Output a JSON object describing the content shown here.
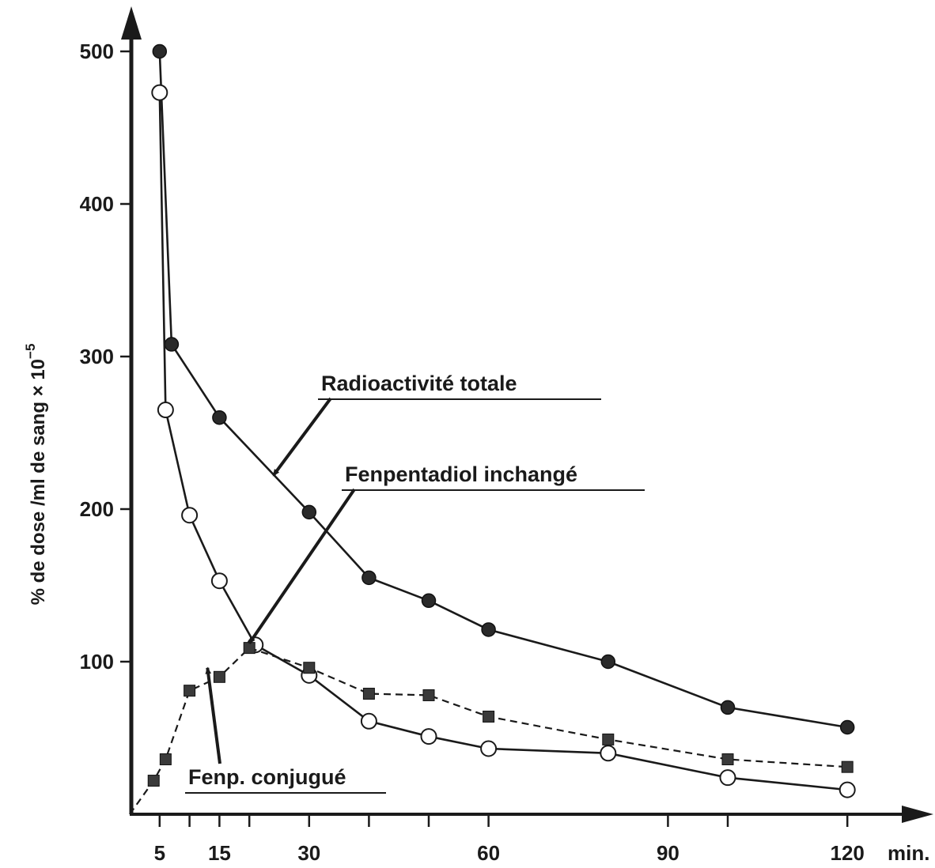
{
  "chart_data": {
    "type": "line",
    "xlabel": "min.",
    "ylabel": "% de dose /ml de sang × 10",
    "ylabel_exponent": "−5",
    "xlim": [
      0,
      127
    ],
    "ylim": [
      0,
      520
    ],
    "x_ticks": [
      5,
      10,
      15,
      20,
      30,
      40,
      50,
      60,
      90,
      100,
      120
    ],
    "x_tick_labels": [
      {
        "x": 5,
        "label": "5"
      },
      {
        "x": 15,
        "label": "15"
      },
      {
        "x": 30,
        "label": "30"
      },
      {
        "x": 60,
        "label": "60"
      },
      {
        "x": 90,
        "label": "90"
      },
      {
        "x": 120,
        "label": "120"
      }
    ],
    "y_ticks": [
      100,
      200,
      300,
      400,
      500
    ],
    "y_tick_labels": [
      "100",
      "200",
      "300",
      "400",
      "500"
    ],
    "grid": false,
    "series": [
      {
        "name": "Radioactivité totale",
        "marker": "filled-circle",
        "line_style": "solid",
        "color": "#1a1a1a",
        "x": [
          5,
          7,
          15,
          30,
          40,
          50,
          60,
          80,
          100,
          120
        ],
        "y": [
          500,
          308,
          260,
          198,
          155,
          140,
          121,
          100,
          70,
          57
        ]
      },
      {
        "name": "Fenpentadiol inchangé",
        "marker": "open-circle",
        "line_style": "solid",
        "color": "#1a1a1a",
        "x": [
          5,
          6,
          10,
          15,
          21,
          30,
          40,
          50,
          60,
          80,
          100,
          120
        ],
        "y": [
          473,
          265,
          196,
          153,
          111,
          91,
          61,
          51,
          43,
          40,
          24,
          16
        ]
      },
      {
        "name": "Fenp. conjugué",
        "marker": "filled-square",
        "line_style": "dashed",
        "color": "#1a1a1a",
        "x": [
          0,
          4,
          6,
          10,
          15,
          20,
          30,
          40,
          50,
          60,
          80,
          100,
          120
        ],
        "y": [
          0,
          22,
          36,
          81,
          90,
          109,
          96,
          79,
          78,
          64,
          49,
          36,
          31
        ]
      }
    ],
    "annotations": [
      {
        "text": "Radioactivité totale",
        "arrow_to": {
          "x": 24,
          "y": 222
        }
      },
      {
        "text": "Fenpentadiol inchangé",
        "arrow_to": {
          "x": 20,
          "y": 112
        }
      },
      {
        "text": "Fenp. conjugué",
        "arrow_to": {
          "x": 13,
          "y": 96
        }
      }
    ]
  }
}
